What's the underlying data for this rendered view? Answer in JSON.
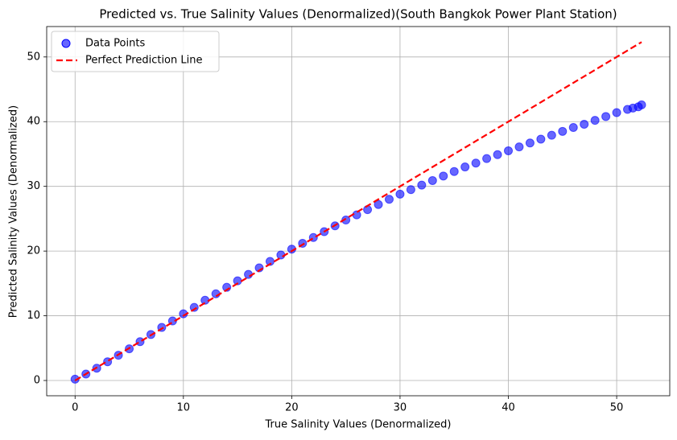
{
  "chart_data": {
    "type": "scatter",
    "title": "Predicted vs. True Salinity Values (Denormalized)(South Bangkok Power Plant Station)",
    "x_label": "True Salinity Values (Denormalized)",
    "y_label": "Predicted Salinity Values (Denormalized)",
    "xlim": [
      -2.62,
      54.9
    ],
    "ylim": [
      -2.36,
      54.7
    ],
    "xticks": [
      0,
      10,
      20,
      30,
      40,
      50
    ],
    "yticks": [
      0,
      10,
      20,
      30,
      40,
      50
    ],
    "grid": true,
    "legend": "upper-left",
    "series": [
      {
        "name": "Data Points",
        "type": "scatter",
        "color": "#0000ff",
        "x": [
          0,
          1,
          2,
          3,
          4,
          5,
          6,
          7,
          8,
          9,
          10,
          11,
          12,
          13,
          14,
          15,
          16,
          17,
          18,
          19,
          20,
          21,
          22,
          23,
          24,
          25,
          26,
          27,
          28,
          29,
          30,
          31,
          32,
          33,
          34,
          35,
          36,
          37,
          38,
          39,
          40,
          41,
          42,
          43,
          44,
          45,
          46,
          47,
          48,
          49,
          50,
          51,
          51.5,
          52,
          52.3
        ],
        "values": [
          0.2,
          1.0,
          1.9,
          2.9,
          3.9,
          4.9,
          6.0,
          7.1,
          8.2,
          9.2,
          10.3,
          11.3,
          12.4,
          13.4,
          14.4,
          15.4,
          16.4,
          17.4,
          18.4,
          19.4,
          20.3,
          21.2,
          22.1,
          23.0,
          23.9,
          24.8,
          25.6,
          26.4,
          27.2,
          28.0,
          28.8,
          29.5,
          30.2,
          30.9,
          31.6,
          32.3,
          33.0,
          33.6,
          34.3,
          34.9,
          35.5,
          36.1,
          36.7,
          37.3,
          37.9,
          38.5,
          39.1,
          39.6,
          40.2,
          40.8,
          41.4,
          41.9,
          42.1,
          42.3,
          42.6
        ]
      },
      {
        "name": "Perfect Prediction Line",
        "type": "line",
        "color": "#ff0000",
        "x": [
          0,
          52.3
        ],
        "values": [
          0,
          52.3
        ]
      }
    ]
  }
}
